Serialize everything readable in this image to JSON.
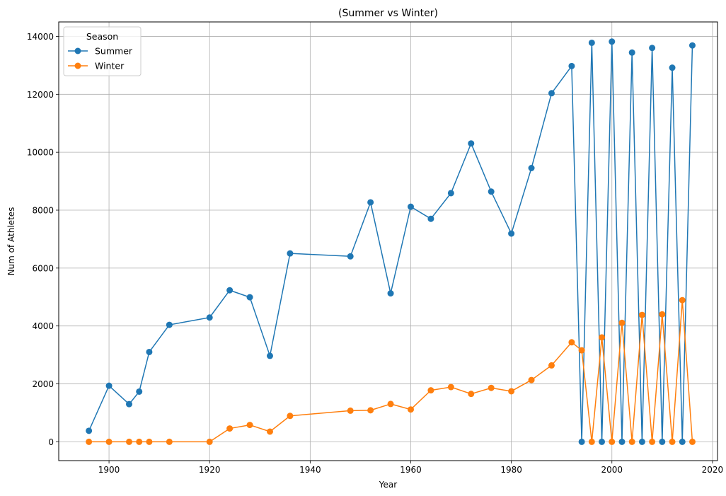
{
  "chart_data": {
    "type": "line",
    "title": "(Summer vs Winter)",
    "xlabel": "Year",
    "ylabel": "Num of Athletes",
    "xlim": [
      1890,
      2021
    ],
    "ylim": [
      -650,
      14500
    ],
    "xticks": [
      1900,
      1920,
      1940,
      1960,
      1980,
      2000,
      2020
    ],
    "yticks": [
      0,
      2000,
      4000,
      6000,
      8000,
      10000,
      12000,
      14000
    ],
    "grid": true,
    "legend": {
      "title": "Season",
      "placement": "top-left"
    },
    "x": [
      1896,
      1900,
      1904,
      1906,
      1908,
      1912,
      1920,
      1924,
      1928,
      1932,
      1936,
      1948,
      1952,
      1956,
      1960,
      1964,
      1968,
      1972,
      1976,
      1980,
      1984,
      1988,
      1992,
      1994,
      1996,
      1998,
      2000,
      2002,
      2004,
      2006,
      2008,
      2010,
      2012,
      2014,
      2016
    ],
    "series": [
      {
        "name": "Summer",
        "color": "#1f77b4",
        "values": [
          380,
          1936,
          1301,
          1733,
          3101,
          4040,
          4292,
          5233,
          4992,
          2969,
          6506,
          6405,
          8270,
          5127,
          8119,
          7702,
          8588,
          10304,
          8641,
          7191,
          9454,
          12037,
          12977,
          0,
          13780,
          0,
          13821,
          0,
          13443,
          0,
          13602,
          0,
          12920,
          0,
          13688
        ]
      },
      {
        "name": "Winter",
        "color": "#ff7f0e",
        "values": [
          0,
          0,
          0,
          0,
          0,
          0,
          0,
          460,
          582,
          352,
          895,
          1075,
          1088,
          1307,
          1116,
          1778,
          1891,
          1655,
          1861,
          1746,
          2134,
          2639,
          3436,
          3160,
          0,
          3605,
          0,
          4109,
          0,
          4382,
          0,
          4402,
          0,
          4891,
          0
        ]
      }
    ]
  }
}
